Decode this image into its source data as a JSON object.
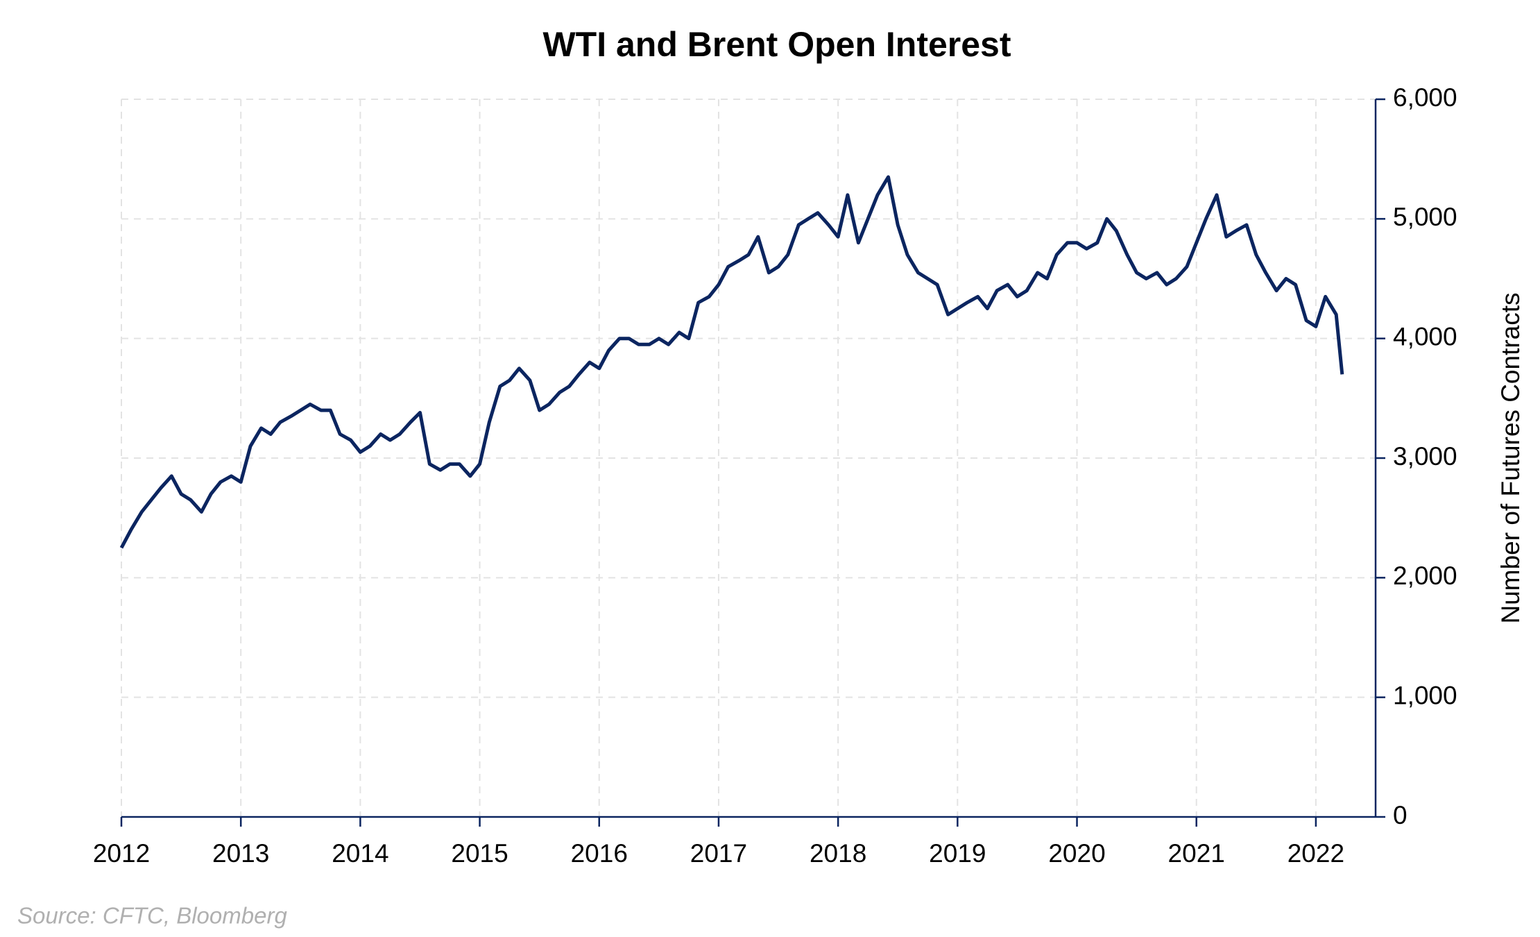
{
  "chart_data": {
    "type": "line",
    "title": "WTI and Brent Open Interest",
    "y_axis_label": "Number of Futures Contracts",
    "source": "Source: CFTC, Bloomberg",
    "x": [
      2012.0,
      2012.08,
      2012.17,
      2012.25,
      2012.33,
      2012.42,
      2012.5,
      2012.58,
      2012.67,
      2012.75,
      2012.83,
      2012.92,
      2013.0,
      2013.08,
      2013.17,
      2013.25,
      2013.33,
      2013.42,
      2013.5,
      2013.58,
      2013.67,
      2013.75,
      2013.83,
      2013.92,
      2014.0,
      2014.08,
      2014.17,
      2014.25,
      2014.33,
      2014.42,
      2014.5,
      2014.58,
      2014.67,
      2014.75,
      2014.83,
      2014.92,
      2015.0,
      2015.08,
      2015.17,
      2015.25,
      2015.33,
      2015.42,
      2015.5,
      2015.58,
      2015.67,
      2015.75,
      2015.83,
      2015.92,
      2016.0,
      2016.08,
      2016.17,
      2016.25,
      2016.33,
      2016.42,
      2016.5,
      2016.58,
      2016.67,
      2016.75,
      2016.83,
      2016.92,
      2017.0,
      2017.08,
      2017.17,
      2017.25,
      2017.33,
      2017.42,
      2017.5,
      2017.58,
      2017.67,
      2017.75,
      2017.83,
      2017.92,
      2018.0,
      2018.08,
      2018.17,
      2018.25,
      2018.33,
      2018.42,
      2018.5,
      2018.58,
      2018.67,
      2018.75,
      2018.83,
      2018.92,
      2019.0,
      2019.08,
      2019.17,
      2019.25,
      2019.33,
      2019.42,
      2019.5,
      2019.58,
      2019.67,
      2019.75,
      2019.83,
      2019.92,
      2020.0,
      2020.08,
      2020.17,
      2020.25,
      2020.33,
      2020.42,
      2020.5,
      2020.58,
      2020.67,
      2020.75,
      2020.83,
      2020.92,
      2021.0,
      2021.08,
      2021.17,
      2021.25,
      2021.33,
      2021.42,
      2021.5,
      2021.58,
      2021.67,
      2021.75,
      2021.83,
      2021.92,
      2022.0,
      2022.08,
      2022.17,
      2022.22
    ],
    "series": [
      {
        "name": "Open Interest",
        "color": "#0b2560",
        "values": [
          2250,
          2400,
          2550,
          2650,
          2750,
          2850,
          2700,
          2650,
          2550,
          2700,
          2800,
          2850,
          2800,
          3100,
          3250,
          3200,
          3300,
          3350,
          3400,
          3450,
          3400,
          3400,
          3200,
          3150,
          3050,
          3100,
          3200,
          3150,
          3200,
          3300,
          3380,
          2950,
          2900,
          2950,
          2950,
          2850,
          2950,
          3300,
          3600,
          3650,
          3750,
          3650,
          3400,
          3450,
          3550,
          3600,
          3700,
          3800,
          3750,
          3900,
          4000,
          4000,
          3950,
          3950,
          4000,
          3950,
          4050,
          4000,
          4300,
          4350,
          4450,
          4600,
          4650,
          4700,
          4850,
          4550,
          4600,
          4700,
          4950,
          5000,
          5050,
          4950,
          4850,
          5200,
          4800,
          5000,
          5200,
          5350,
          4950,
          4700,
          4550,
          4500,
          4450,
          4200,
          4250,
          4300,
          4350,
          4250,
          4400,
          4450,
          4350,
          4400,
          4550,
          4500,
          4700,
          4800,
          4800,
          4750,
          4800,
          5000,
          4900,
          4700,
          4550,
          4500,
          4550,
          4450,
          4500,
          4600,
          4800,
          5000,
          5200,
          4850,
          4900,
          4950,
          4700,
          4550,
          4400,
          4500,
          4450,
          4150,
          4100,
          4350,
          4200,
          3700
        ]
      }
    ],
    "xlim": [
      2012,
      2022.5
    ],
    "xticks": [
      2012,
      2013,
      2014,
      2015,
      2016,
      2017,
      2018,
      2019,
      2020,
      2021,
      2022
    ],
    "ylim": [
      0,
      6000
    ],
    "yticks": [
      0,
      {
        "value": 1000,
        "label": "1,000"
      },
      {
        "value": 2000,
        "label": "2,000"
      },
      {
        "value": 3000,
        "label": "3,000"
      },
      {
        "value": 4000,
        "label": "4,000"
      },
      {
        "value": 5000,
        "label": "5,000"
      },
      {
        "value": 6000,
        "label": "6,000"
      }
    ],
    "grid": true,
    "y_axis_side": "right"
  }
}
